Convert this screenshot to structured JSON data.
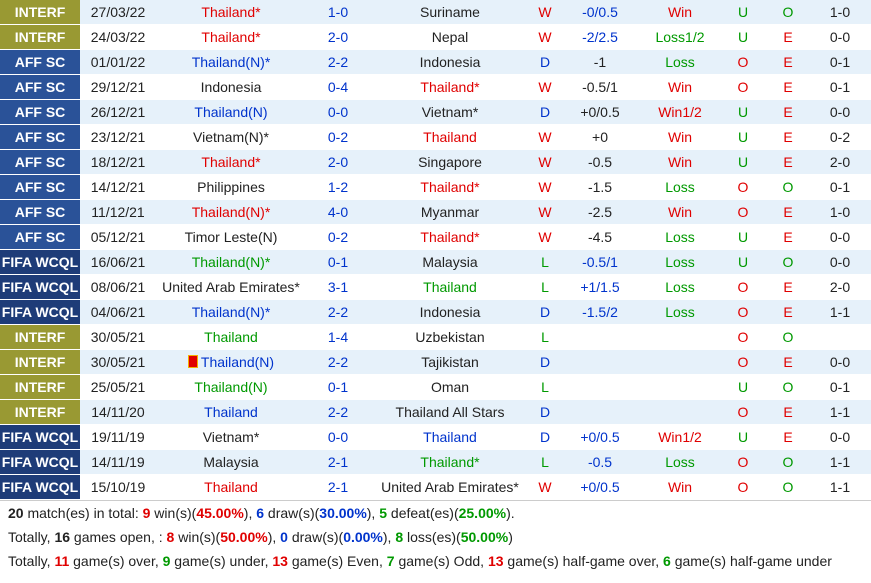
{
  "rows": [
    {
      "comp": "INTERF",
      "ct": "interf",
      "date": "27/03/22",
      "home": "Thailand*",
      "hc": "red",
      "score": "1-0",
      "away": "Suriname",
      "ac": "black",
      "res": "W",
      "rc": "red",
      "hcp": "-0/0.5",
      "hcpc": "blue",
      "hr": "Win",
      "hrc": "red",
      "ou": "U",
      "ouc": "green",
      "oe": "O",
      "oec": "green",
      "ht": "1-0",
      "hto": "O",
      "htoc": "red"
    },
    {
      "comp": "INTERF",
      "ct": "interf",
      "date": "24/03/22",
      "home": "Thailand*",
      "hc": "red",
      "score": "2-0",
      "away": "Nepal",
      "ac": "black",
      "res": "W",
      "rc": "red",
      "hcp": "-2/2.5",
      "hcpc": "blue",
      "hr": "Loss1/2",
      "hrc": "green",
      "ou": "U",
      "ouc": "green",
      "oe": "E",
      "oec": "red",
      "ht": "0-0",
      "hto": "U",
      "htoc": "green"
    },
    {
      "comp": "AFF SC",
      "ct": "aff",
      "date": "01/01/22",
      "home": "Thailand(N)*",
      "hc": "blue",
      "score": "2-2",
      "away": "Indonesia",
      "ac": "black",
      "res": "D",
      "rc": "blue",
      "hcp": "-1",
      "hcpc": "black",
      "hr": "Loss",
      "hrc": "green",
      "ou": "O",
      "ouc": "red",
      "oe": "E",
      "oec": "red",
      "ht": "0-1",
      "hto": "O",
      "htoc": "red"
    },
    {
      "comp": "AFF SC",
      "ct": "aff",
      "date": "29/12/21",
      "home": "Indonesia",
      "hc": "black",
      "score": "0-4",
      "away": "Thailand*",
      "ac": "red",
      "res": "W",
      "rc": "red",
      "hcp": "-0.5/1",
      "hcpc": "black",
      "hr": "Win",
      "hrc": "red",
      "ou": "O",
      "ouc": "red",
      "oe": "E",
      "oec": "red",
      "ht": "0-1",
      "hto": "O",
      "htoc": "red"
    },
    {
      "comp": "AFF SC",
      "ct": "aff",
      "date": "26/12/21",
      "home": "Thailand(N)",
      "hc": "blue",
      "score": "0-0",
      "away": "Vietnam*",
      "ac": "black",
      "res": "D",
      "rc": "blue",
      "hcp": "+0/0.5",
      "hcpc": "black",
      "hr": "Win1/2",
      "hrc": "red",
      "ou": "U",
      "ouc": "green",
      "oe": "E",
      "oec": "red",
      "ht": "0-0",
      "hto": "U",
      "htoc": "green"
    },
    {
      "comp": "AFF SC",
      "ct": "aff",
      "date": "23/12/21",
      "home": "Vietnam(N)*",
      "hc": "black",
      "score": "0-2",
      "away": "Thailand",
      "ac": "red",
      "res": "W",
      "rc": "red",
      "hcp": "+0",
      "hcpc": "black",
      "hr": "Win",
      "hrc": "red",
      "ou": "U",
      "ouc": "green",
      "oe": "E",
      "oec": "red",
      "ht": "0-2",
      "hto": "O",
      "htoc": "red"
    },
    {
      "comp": "AFF SC",
      "ct": "aff",
      "date": "18/12/21",
      "home": "Thailand*",
      "hc": "red",
      "score": "2-0",
      "away": "Singapore",
      "ac": "black",
      "res": "W",
      "rc": "red",
      "hcp": "-0.5",
      "hcpc": "black",
      "hr": "Win",
      "hrc": "red",
      "ou": "U",
      "ouc": "green",
      "oe": "E",
      "oec": "red",
      "ht": "2-0",
      "hto": "O",
      "htoc": "red"
    },
    {
      "comp": "AFF SC",
      "ct": "aff",
      "date": "14/12/21",
      "home": "Philippines",
      "hc": "black",
      "score": "1-2",
      "away": "Thailand*",
      "ac": "red",
      "res": "W",
      "rc": "red",
      "hcp": "-1.5",
      "hcpc": "black",
      "hr": "Loss",
      "hrc": "green",
      "ou": "O",
      "ouc": "red",
      "oe": "O",
      "oec": "green",
      "ht": "0-1",
      "hto": "O",
      "htoc": "red"
    },
    {
      "comp": "AFF SC",
      "ct": "aff",
      "date": "11/12/21",
      "home": "Thailand(N)*",
      "hc": "red",
      "score": "4-0",
      "away": "Myanmar",
      "ac": "black",
      "res": "W",
      "rc": "red",
      "hcp": "-2.5",
      "hcpc": "black",
      "hr": "Win",
      "hrc": "red",
      "ou": "O",
      "ouc": "red",
      "oe": "E",
      "oec": "red",
      "ht": "1-0",
      "hto": "O",
      "htoc": "red"
    },
    {
      "comp": "AFF SC",
      "ct": "aff",
      "date": "05/12/21",
      "home": "Timor Leste(N)",
      "hc": "black",
      "score": "0-2",
      "away": "Thailand*",
      "ac": "red",
      "res": "W",
      "rc": "red",
      "hcp": "-4.5",
      "hcpc": "black",
      "hr": "Loss",
      "hrc": "green",
      "ou": "U",
      "ouc": "green",
      "oe": "E",
      "oec": "red",
      "ht": "0-0",
      "hto": "U",
      "htoc": "green"
    },
    {
      "comp": "FIFA WCQL",
      "ct": "fifa",
      "date": "16/06/21",
      "home": "Thailand(N)*",
      "hc": "green",
      "score": "0-1",
      "away": "Malaysia",
      "ac": "black",
      "res": "L",
      "rc": "green",
      "hcp": "-0.5/1",
      "hcpc": "blue",
      "hr": "Loss",
      "hrc": "green",
      "ou": "U",
      "ouc": "green",
      "oe": "O",
      "oec": "green",
      "ht": "0-0",
      "hto": "U",
      "htoc": "green"
    },
    {
      "comp": "FIFA WCQL",
      "ct": "fifa",
      "date": "08/06/21",
      "home": "United Arab Emirates*",
      "hc": "black",
      "score": "3-1",
      "away": "Thailand",
      "ac": "green",
      "res": "L",
      "rc": "green",
      "hcp": "+1/1.5",
      "hcpc": "blue",
      "hr": "Loss",
      "hrc": "green",
      "ou": "O",
      "ouc": "red",
      "oe": "E",
      "oec": "red",
      "ht": "2-0",
      "hto": "O",
      "htoc": "red"
    },
    {
      "comp": "FIFA WCQL",
      "ct": "fifa",
      "date": "04/06/21",
      "home": "Thailand(N)*",
      "hc": "blue",
      "score": "2-2",
      "away": "Indonesia",
      "ac": "black",
      "res": "D",
      "rc": "blue",
      "hcp": "-1.5/2",
      "hcpc": "blue",
      "hr": "Loss",
      "hrc": "green",
      "ou": "O",
      "ouc": "red",
      "oe": "E",
      "oec": "red",
      "ht": "1-1",
      "hto": "O",
      "htoc": "red"
    },
    {
      "comp": "INTERF",
      "ct": "interf",
      "date": "30/05/21",
      "home": "Thailand",
      "hc": "green",
      "score": "1-4",
      "away": "Uzbekistan",
      "ac": "black",
      "res": "L",
      "rc": "green",
      "hcp": "",
      "hcpc": "black",
      "hr": "",
      "hrc": "black",
      "ou": "O",
      "ouc": "red",
      "oe": "O",
      "oec": "green",
      "ht": "",
      "hto": "",
      "htoc": "black"
    },
    {
      "comp": "INTERF",
      "ct": "interf",
      "date": "30/05/21",
      "home": "Thailand(N)",
      "hc": "blue",
      "flag": true,
      "score": "2-2",
      "away": "Tajikistan",
      "ac": "black",
      "res": "D",
      "rc": "blue",
      "hcp": "",
      "hcpc": "black",
      "hr": "",
      "hrc": "black",
      "ou": "O",
      "ouc": "red",
      "oe": "E",
      "oec": "red",
      "ht": "0-0",
      "hto": "U",
      "htoc": "green"
    },
    {
      "comp": "INTERF",
      "ct": "interf",
      "date": "25/05/21",
      "home": "Thailand(N)",
      "hc": "green",
      "score": "0-1",
      "away": "Oman",
      "ac": "black",
      "res": "L",
      "rc": "green",
      "hcp": "",
      "hcpc": "black",
      "hr": "",
      "hrc": "black",
      "ou": "U",
      "ouc": "green",
      "oe": "O",
      "oec": "green",
      "ht": "0-1",
      "hto": "O",
      "htoc": "red"
    },
    {
      "comp": "INTERF",
      "ct": "interf",
      "date": "14/11/20",
      "home": "Thailand",
      "hc": "blue",
      "score": "2-2",
      "away": "Thailand All Stars",
      "ac": "black",
      "res": "D",
      "rc": "blue",
      "hcp": "",
      "hcpc": "black",
      "hr": "",
      "hrc": "black",
      "ou": "O",
      "ouc": "red",
      "oe": "E",
      "oec": "red",
      "ht": "1-1",
      "hto": "O",
      "htoc": "red"
    },
    {
      "comp": "FIFA WCQL",
      "ct": "fifa",
      "date": "19/11/19",
      "home": "Vietnam*",
      "hc": "black",
      "score": "0-0",
      "away": "Thailand",
      "ac": "blue",
      "res": "D",
      "rc": "blue",
      "hcp": "+0/0.5",
      "hcpc": "blue",
      "hr": "Win1/2",
      "hrc": "red",
      "ou": "U",
      "ouc": "green",
      "oe": "E",
      "oec": "red",
      "ht": "0-0",
      "hto": "U",
      "htoc": "green"
    },
    {
      "comp": "FIFA WCQL",
      "ct": "fifa",
      "date": "14/11/19",
      "home": "Malaysia",
      "hc": "black",
      "score": "2-1",
      "away": "Thailand*",
      "ac": "green",
      "res": "L",
      "rc": "green",
      "hcp": "-0.5",
      "hcpc": "blue",
      "hr": "Loss",
      "hrc": "green",
      "ou": "O",
      "ouc": "red",
      "oe": "O",
      "oec": "green",
      "ht": "1-1",
      "hto": "O",
      "htoc": "red"
    },
    {
      "comp": "FIFA WCQL",
      "ct": "fifa",
      "date": "15/10/19",
      "home": "Thailand",
      "hc": "red",
      "score": "2-1",
      "away": "United Arab Emirates*",
      "ac": "black",
      "res": "W",
      "rc": "red",
      "hcp": "+0/0.5",
      "hcpc": "blue",
      "hr": "Win",
      "hrc": "red",
      "ou": "O",
      "ouc": "red",
      "oe": "O",
      "oec": "green",
      "ht": "1-1",
      "hto": "O",
      "htoc": "red"
    }
  ],
  "summary": {
    "line1": [
      {
        "t": "20",
        "c": "black",
        "b": true
      },
      {
        "t": " match(es) in total: ",
        "c": "black"
      },
      {
        "t": "9",
        "c": "red",
        "b": true
      },
      {
        "t": " win(s)(",
        "c": "black"
      },
      {
        "t": "45.00%",
        "c": "red",
        "b": true
      },
      {
        "t": "), ",
        "c": "black"
      },
      {
        "t": "6",
        "c": "blue",
        "b": true
      },
      {
        "t": " draw(s)(",
        "c": "black"
      },
      {
        "t": "30.00%",
        "c": "blue",
        "b": true
      },
      {
        "t": "), ",
        "c": "black"
      },
      {
        "t": "5",
        "c": "green",
        "b": true
      },
      {
        "t": " defeat(es)(",
        "c": "black"
      },
      {
        "t": "25.00%",
        "c": "green",
        "b": true
      },
      {
        "t": ").",
        "c": "black"
      }
    ],
    "line2": [
      {
        "t": "Totally, ",
        "c": "black"
      },
      {
        "t": "16",
        "c": "black",
        "b": true
      },
      {
        "t": " games open, : ",
        "c": "black"
      },
      {
        "t": "8",
        "c": "red",
        "b": true
      },
      {
        "t": " win(s)(",
        "c": "black"
      },
      {
        "t": "50.00%",
        "c": "red",
        "b": true
      },
      {
        "t": "), ",
        "c": "black"
      },
      {
        "t": "0",
        "c": "blue",
        "b": true
      },
      {
        "t": " draw(s)(",
        "c": "black"
      },
      {
        "t": "0.00%",
        "c": "blue",
        "b": true
      },
      {
        "t": "), ",
        "c": "black"
      },
      {
        "t": "8",
        "c": "green",
        "b": true
      },
      {
        "t": " loss(es)(",
        "c": "black"
      },
      {
        "t": "50.00%",
        "c": "green",
        "b": true
      },
      {
        "t": ")",
        "c": "black"
      }
    ],
    "line3": [
      {
        "t": "Totally, ",
        "c": "black"
      },
      {
        "t": "11",
        "c": "red",
        "b": true
      },
      {
        "t": " game(s) over, ",
        "c": "black"
      },
      {
        "t": "9",
        "c": "green",
        "b": true
      },
      {
        "t": " game(s) under, ",
        "c": "black"
      },
      {
        "t": "13",
        "c": "red",
        "b": true
      },
      {
        "t": " game(s) Even, ",
        "c": "black"
      },
      {
        "t": "7",
        "c": "green",
        "b": true
      },
      {
        "t": " game(s) Odd, ",
        "c": "black"
      },
      {
        "t": "13",
        "c": "red",
        "b": true
      },
      {
        "t": " game(s) half-game over, ",
        "c": "black"
      },
      {
        "t": "6",
        "c": "green",
        "b": true
      },
      {
        "t": " game(s) half-game under",
        "c": "black"
      }
    ]
  },
  "colors": {
    "interf": "#999933",
    "aff": "#2a5298",
    "fifa": "#1e3c78",
    "red": "#e00000",
    "blue": "#0033cc",
    "green": "#009900"
  }
}
